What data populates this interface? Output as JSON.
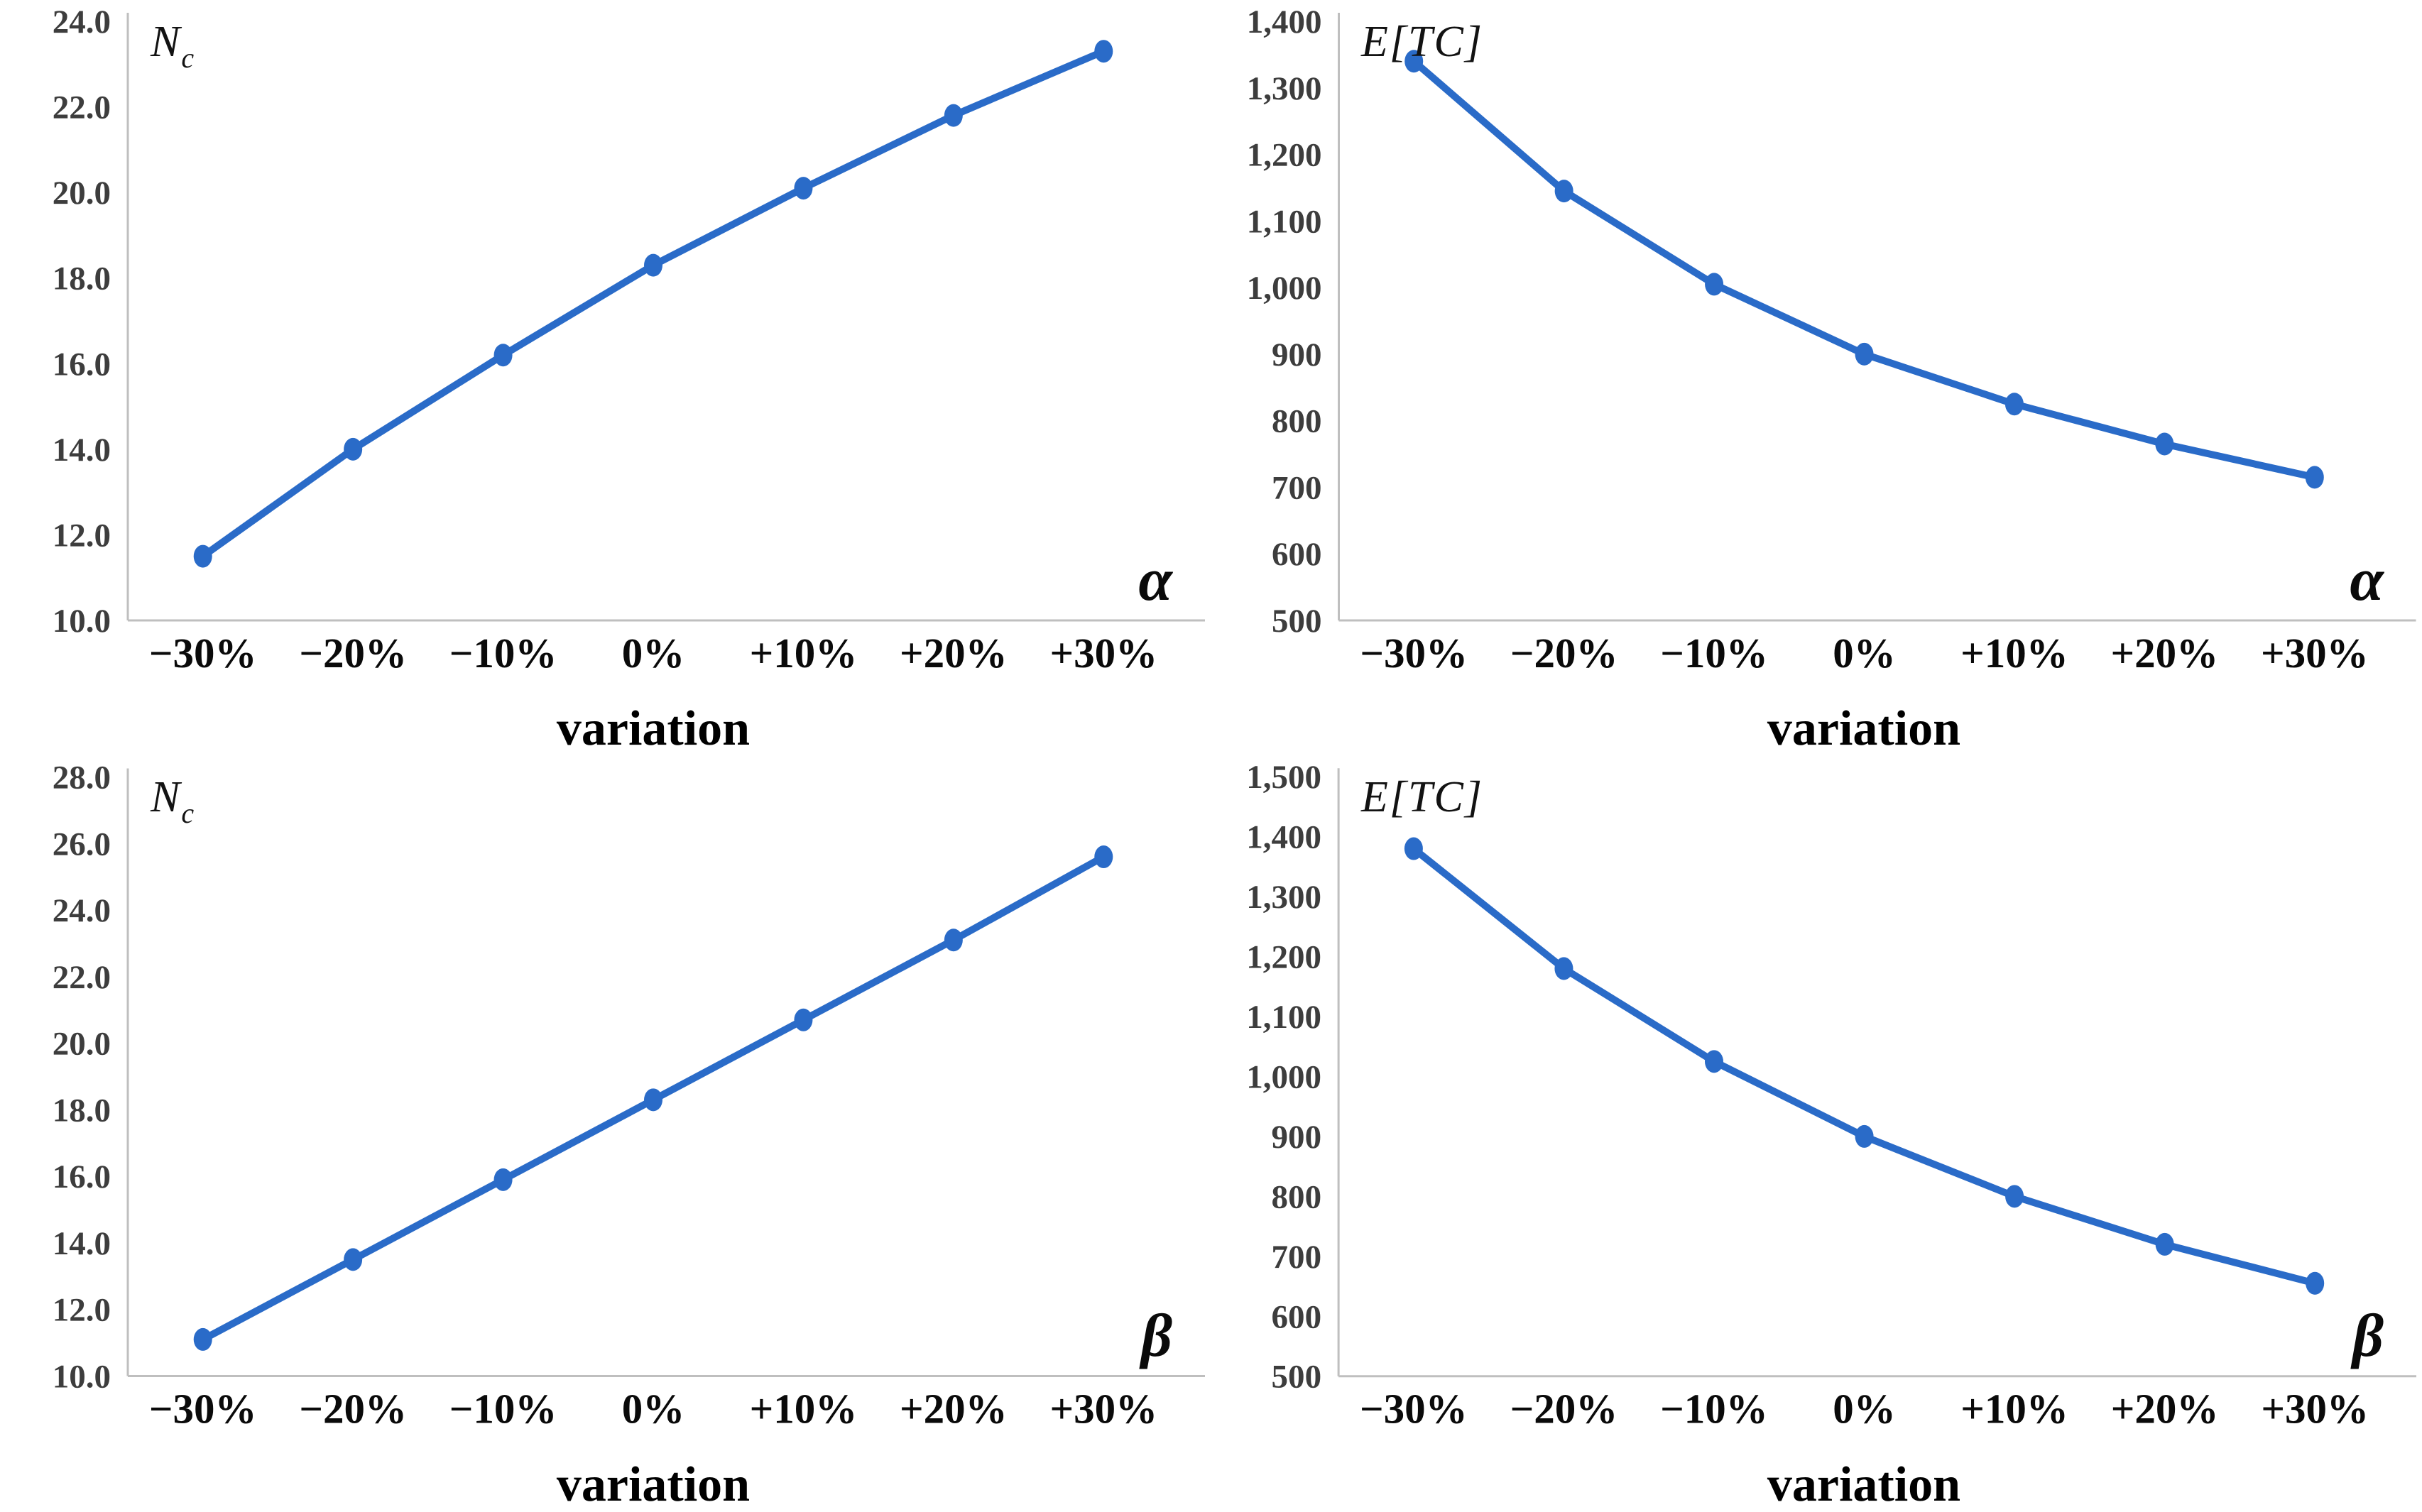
{
  "figure": {
    "description_labels": {
      "variation_label": "variation"
    }
  },
  "styles": {
    "axis_color": "#bfbfbf",
    "ytick_color": "#3d3d3d",
    "xtick_color": "#0a0a0a",
    "accent_blue": "#2a6bc8"
  },
  "chart_data": [
    {
      "id": "nc-alpha",
      "type": "line",
      "ylabel_main": "N",
      "ylabel_sub": "c",
      "corner_label": "α",
      "xlabel": "variation",
      "categories": [
        "−30%",
        "−20%",
        "−10%",
        "0%",
        "+10%",
        "+20%",
        "+30%"
      ],
      "values": [
        11.5,
        14.0,
        16.2,
        18.3,
        20.1,
        21.8,
        23.3
      ],
      "ylim": [
        10,
        24
      ],
      "yticks": [
        "24.0",
        "22.0",
        "20.0",
        "18.0",
        "16.0",
        "14.0",
        "12.0",
        "10.0"
      ],
      "line_color": "#2a6bc8",
      "marker": "circle",
      "grid": false,
      "legend": "none"
    },
    {
      "id": "etc-alpha",
      "type": "line",
      "ylabel_main": "E[TC]",
      "ylabel_sub": "",
      "corner_label": "α",
      "xlabel": "variation",
      "categories": [
        "−30%",
        "−20%",
        "−10%",
        "0%",
        "+10%",
        "+20%",
        "+30%"
      ],
      "values": [
        1340,
        1145,
        1005,
        900,
        825,
        765,
        715
      ],
      "ylim": [
        500,
        1400
      ],
      "yticks": [
        "1,400",
        "1,300",
        "1,200",
        "1,100",
        "1,000",
        "900",
        "800",
        "700",
        "600",
        "500"
      ],
      "line_color": "#2a6bc8",
      "marker": "circle",
      "grid": false,
      "legend": "none"
    },
    {
      "id": "nc-beta",
      "type": "line",
      "ylabel_main": "N",
      "ylabel_sub": "c",
      "corner_label": "β",
      "xlabel": "variation",
      "categories": [
        "−30%",
        "−20%",
        "−10%",
        "0%",
        "+10%",
        "+20%",
        "+30%"
      ],
      "values": [
        11.1,
        13.5,
        15.9,
        18.3,
        20.7,
        23.1,
        25.6
      ],
      "ylim": [
        10,
        28
      ],
      "yticks": [
        "28.0",
        "26.0",
        "24.0",
        "22.0",
        "20.0",
        "18.0",
        "16.0",
        "14.0",
        "12.0",
        "10.0"
      ],
      "line_color": "#2a6bc8",
      "marker": "circle",
      "grid": false,
      "legend": "none"
    },
    {
      "id": "etc-beta",
      "type": "line",
      "ylabel_main": "E[TC]",
      "ylabel_sub": "",
      "corner_label": "β",
      "xlabel": "variation",
      "categories": [
        "−30%",
        "−20%",
        "−10%",
        "0%",
        "+10%",
        "+20%",
        "+30%"
      ],
      "values": [
        1380,
        1180,
        1025,
        900,
        800,
        720,
        655
      ],
      "ylim": [
        500,
        1500
      ],
      "yticks": [
        "1,500",
        "1,400",
        "1,300",
        "1,200",
        "1,100",
        "1,000",
        "900",
        "800",
        "700",
        "600",
        "500"
      ],
      "line_color": "#2a6bc8",
      "marker": "circle",
      "grid": false,
      "legend": "none"
    }
  ]
}
